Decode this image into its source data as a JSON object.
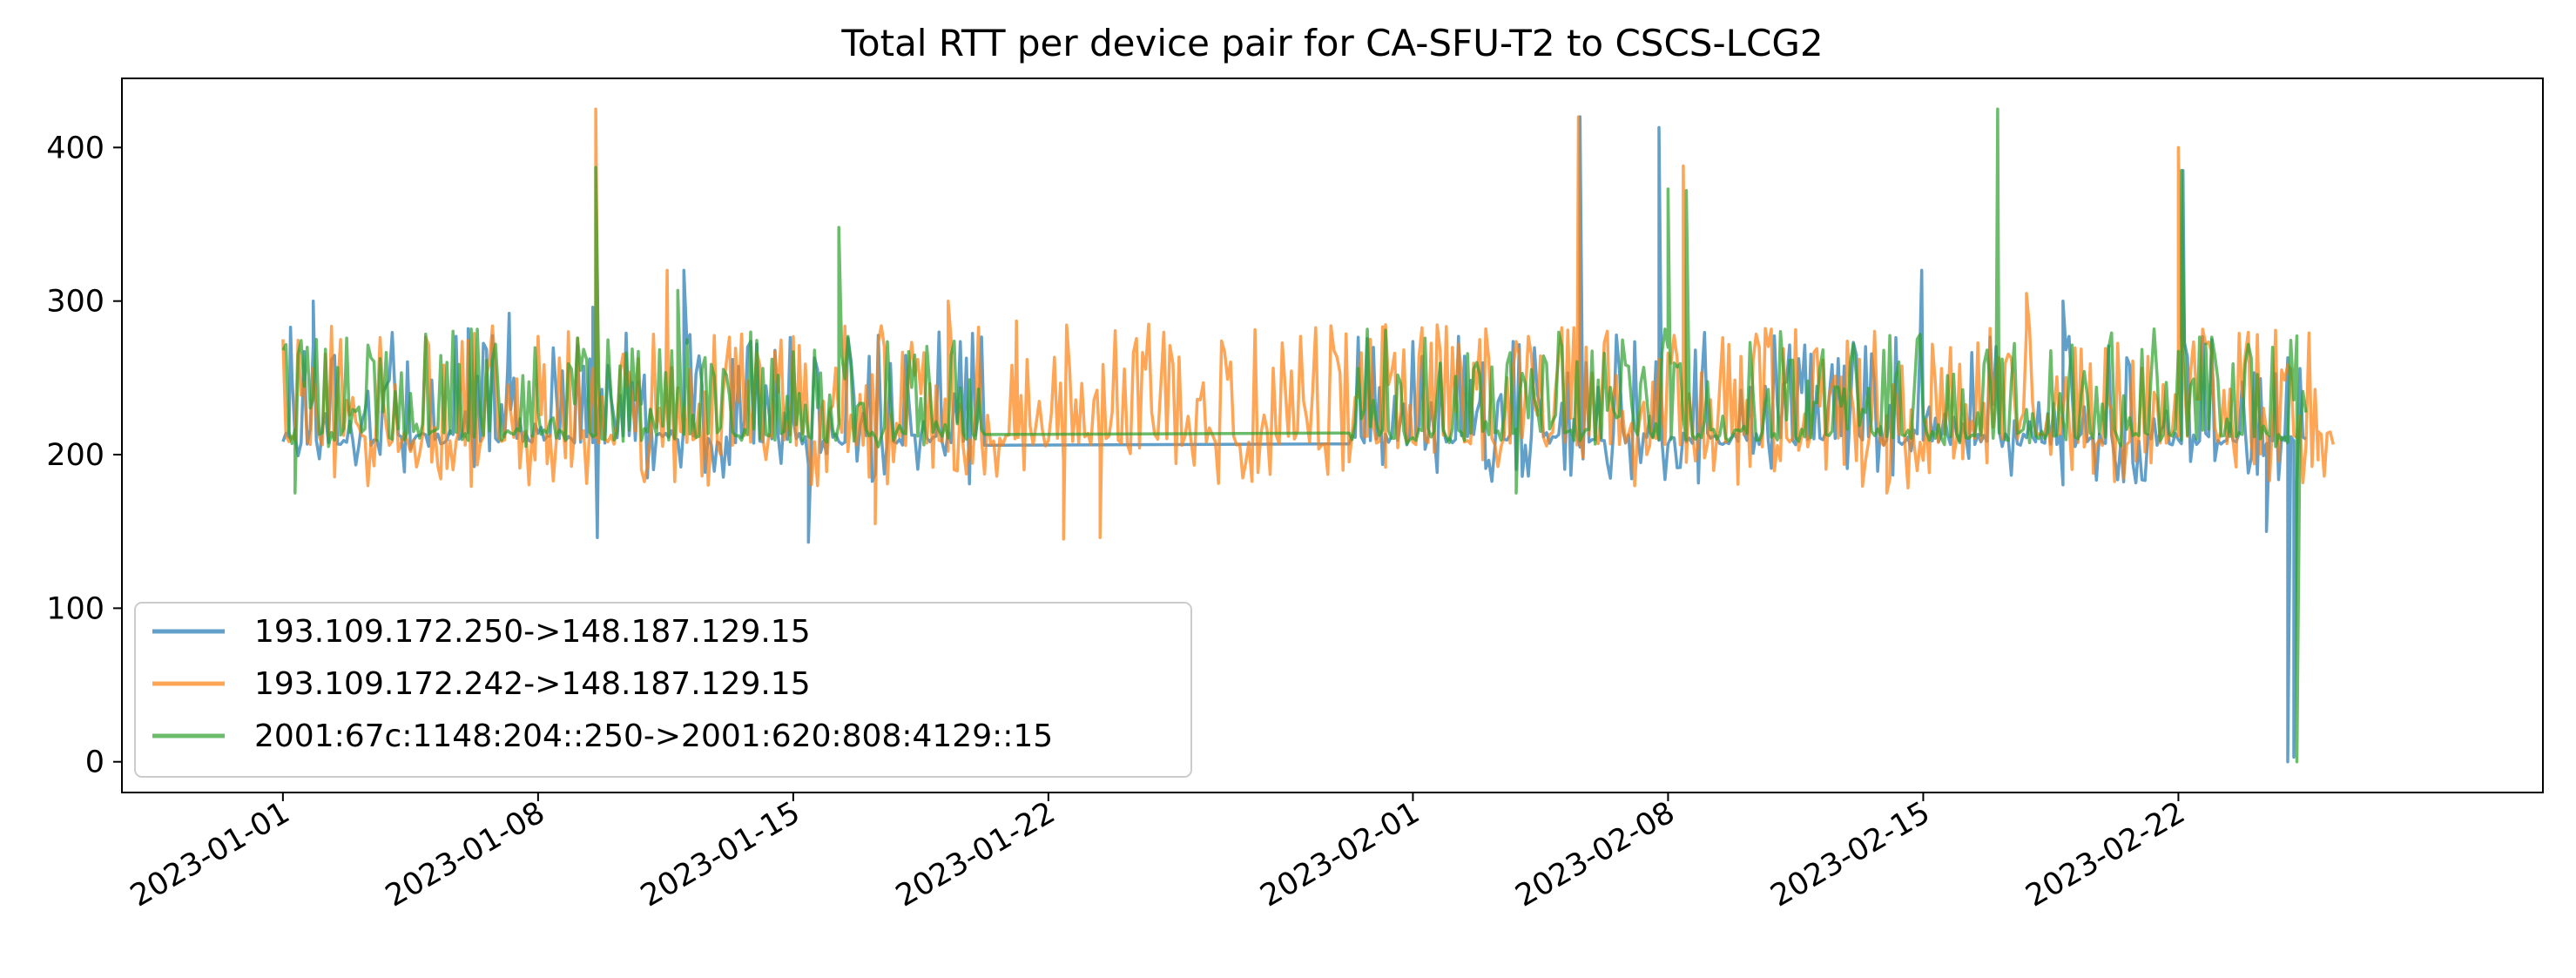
{
  "chart_data": {
    "type": "line",
    "title": "Total RTT per device pair for CA-SFU-T2 to CSCS-LCG2",
    "xlabel": "",
    "ylabel": "",
    "x_axis_type": "date",
    "xlim": [
      "2022-12-27T14:00",
      "2023-03-04T00:00"
    ],
    "ylim": [
      -20,
      445
    ],
    "yticks": [
      0,
      100,
      200,
      300,
      400
    ],
    "xticks": [
      "2023-01-01",
      "2023-01-08",
      "2023-01-15",
      "2023-01-22",
      "2023-02-01",
      "2023-02-08",
      "2023-02-15",
      "2023-02-22"
    ],
    "grid": false,
    "legend_position": "lower-left",
    "series": [
      {
        "name": "193.109.172.250->148.187.129.15",
        "color": "#1f77b4",
        "style": {
          "baseline": 210,
          "band_low": 180,
          "band_high": 280,
          "density": 0.55
        },
        "segments": [
          [
            "2023-01-01T00:00",
            "2023-01-20T06:00"
          ],
          [
            "2023-01-30T06:00",
            "2023-02-25T12:00"
          ]
        ],
        "peaks": [
          [
            "2023-01-01T05:00",
            283
          ],
          [
            "2023-01-01T20:00",
            300
          ],
          [
            "2023-01-06T02:00",
            282
          ],
          [
            "2023-01-07T05:00",
            292
          ],
          [
            "2023-01-09T12:00",
            296
          ],
          [
            "2023-01-09T15:00",
            146
          ],
          [
            "2023-01-12T00:00",
            320
          ],
          [
            "2023-01-15T10:00",
            143
          ],
          [
            "2023-02-05T14:00",
            420
          ],
          [
            "2023-02-07T18:00",
            413
          ],
          [
            "2023-02-14T23:00",
            320
          ],
          [
            "2023-02-18T20:00",
            300
          ],
          [
            "2023-02-22T03:00",
            385
          ],
          [
            "2023-02-24T10:00",
            150
          ],
          [
            "2023-02-25T00:00",
            0
          ],
          [
            "2023-02-25T04:00",
            3
          ]
        ]
      },
      {
        "name": "193.109.172.242->148.187.129.15",
        "color": "#ff7f0e",
        "style": {
          "baseline": 210,
          "band_low": 178,
          "band_high": 285,
          "density": 0.75
        },
        "segments": [
          [
            "2023-01-01T00:00",
            "2023-01-31T06:00"
          ],
          [
            "2023-01-31T06:00",
            "2023-02-26T06:00"
          ]
        ],
        "peaks": [
          [
            "2023-01-09T14:00",
            425
          ],
          [
            "2023-01-11T13:00",
            320
          ],
          [
            "2023-01-17T06:00",
            155
          ],
          [
            "2023-01-19T06:00",
            300
          ],
          [
            "2023-01-21T03:00",
            287
          ],
          [
            "2023-01-22T10:00",
            145
          ],
          [
            "2023-01-23T10:00",
            146
          ],
          [
            "2023-02-05T13:00",
            420
          ],
          [
            "2023-02-08T10:00",
            388
          ],
          [
            "2023-02-14T00:00",
            175
          ],
          [
            "2023-02-17T20:00",
            305
          ],
          [
            "2023-02-22T00:00",
            400
          ],
          [
            "2023-02-25T20:00",
            215
          ]
        ]
      },
      {
        "name": "2001:67c:1148:204::250->2001:620:808:4129::15",
        "color": "#2ca02c",
        "style": {
          "baseline": 213,
          "band_low": 205,
          "band_high": 282,
          "density": 0.6
        },
        "segments": [
          [
            "2023-01-01T00:00",
            "2023-01-20T06:00"
          ],
          [
            "2023-01-30T06:00",
            "2023-02-25T12:00"
          ]
        ],
        "peaks": [
          [
            "2023-01-01T08:00",
            175
          ],
          [
            "2023-01-09T14:00",
            387
          ],
          [
            "2023-01-11T20:00",
            307
          ],
          [
            "2023-01-16T06:00",
            348
          ],
          [
            "2023-02-03T20:00",
            175
          ],
          [
            "2023-02-08T00:00",
            373
          ],
          [
            "2023-02-08T12:00",
            372
          ],
          [
            "2023-02-17T01:00",
            425
          ],
          [
            "2023-02-22T02:00",
            385
          ],
          [
            "2023-02-25T06:00",
            0
          ]
        ]
      }
    ]
  }
}
